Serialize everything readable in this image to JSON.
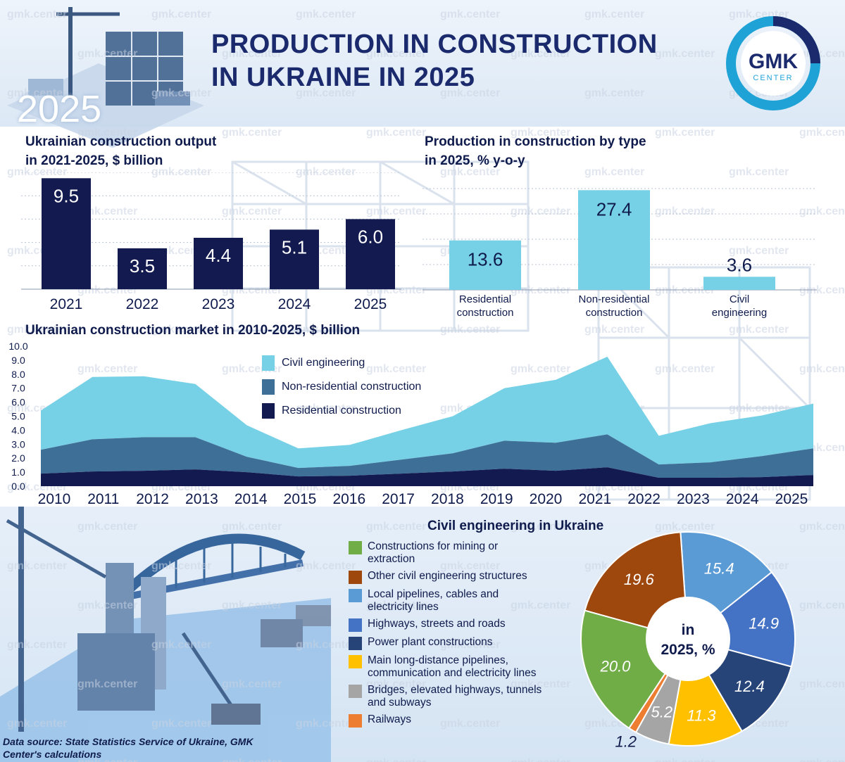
{
  "header": {
    "title_line1": "PRODUCTION IN CONSTRUCTION",
    "title_line2": "IN UKRAINE IN 2025",
    "year_badge": "2025",
    "logo_top": "GMK",
    "logo_bottom": "CENTER",
    "watermark": "gmk.center"
  },
  "colors": {
    "navy": "#121a4f",
    "mid_blue": "#3e6f97",
    "light_blue": "#77d1e6"
  },
  "chart_data": [
    {
      "id": "output",
      "type": "bar",
      "title_line1": "Ukrainian construction output",
      "title_line2": "in 2021-2025, $ billion",
      "categories": [
        "2021",
        "2022",
        "2023",
        "2024",
        "2025"
      ],
      "values": [
        9.5,
        3.5,
        4.4,
        5.1,
        6.0
      ],
      "value_labels": [
        "9.5",
        "3.5",
        "4.4",
        "5.1",
        "6.0"
      ],
      "ylim": [
        0,
        10
      ],
      "grid": true,
      "color": "#121a4f"
    },
    {
      "id": "by_type",
      "type": "bar",
      "title_line1": "Production in construction by type",
      "title_line2": "in 2025, % y-o-y",
      "categories": [
        [
          "Residential",
          "construction"
        ],
        [
          "Non-residential",
          "construction"
        ],
        [
          "Civil",
          "engineering"
        ]
      ],
      "values": [
        13.6,
        27.4,
        3.6
      ],
      "value_labels": [
        "13.6",
        "27.4",
        "3.6"
      ],
      "ylim": [
        0,
        29
      ],
      "grid": true,
      "color": "#77d1e6"
    },
    {
      "id": "market",
      "type": "area",
      "title": "Ukrainian construction market in 2010-2025, $ billion",
      "x": [
        2010,
        2011,
        2012,
        2013,
        2014,
        2015,
        2016,
        2017,
        2018,
        2019,
        2020,
        2021,
        2022,
        2023,
        2024,
        2025
      ],
      "x_labels": [
        "2010",
        "2011",
        "2012",
        "2013",
        "2014",
        "2015",
        "2016",
        "2017",
        "2018",
        "2019",
        "2020",
        "2021",
        "2022",
        "2023",
        "2024",
        "2025"
      ],
      "y_ticks": [
        "0.0",
        "1.0",
        "2.0",
        "3.0",
        "4.0",
        "5.0",
        "6.0",
        "7.0",
        "8.0",
        "9.0",
        "10.0"
      ],
      "ylim": [
        0,
        10
      ],
      "stacked": true,
      "legend_position": "top-center",
      "series": [
        {
          "name": "Residential construction",
          "color": "#121a4f",
          "values": [
            0.9,
            1.05,
            1.1,
            1.2,
            1.0,
            0.7,
            0.75,
            0.9,
            1.05,
            1.25,
            1.1,
            1.35,
            0.6,
            0.6,
            0.65,
            0.8
          ]
        },
        {
          "name": "Non-residential construction",
          "color": "#3e6f97",
          "values": [
            1.7,
            2.3,
            2.4,
            2.3,
            1.1,
            0.6,
            0.7,
            1.0,
            1.3,
            2.0,
            2.0,
            2.35,
            0.95,
            1.1,
            1.5,
            1.9
          ]
        },
        {
          "name": "Civil engineering",
          "color": "#77d1e6",
          "values": [
            2.8,
            4.45,
            4.35,
            3.8,
            2.25,
            1.4,
            1.5,
            2.1,
            2.65,
            3.75,
            4.5,
            5.55,
            2.05,
            2.8,
            2.9,
            3.2
          ]
        }
      ]
    },
    {
      "id": "civil",
      "type": "pie",
      "title": "Civil engineering in Ukraine",
      "center_label_line1": "in",
      "center_label_line2": "2025, %",
      "legend_position": "left",
      "slices": [
        {
          "name": "Local pipelines, cables and electricity lines",
          "legend_lines": [
            "Local pipelines, cables and",
            "electricity lines"
          ],
          "value": 15.4,
          "label": "15.4",
          "color": "#5b9bd5"
        },
        {
          "name": "Highways, streets and roads",
          "legend_lines": [
            "Highways, streets and roads"
          ],
          "value": 14.9,
          "label": "14.9",
          "color": "#4472c4"
        },
        {
          "name": "Power plant constructions",
          "legend_lines": [
            "Power plant constructions"
          ],
          "value": 12.4,
          "label": "12.4",
          "color": "#264478"
        },
        {
          "name": "Main long-distance pipelines, communication and electricity lines",
          "legend_lines": [
            "Main long-distance pipelines,",
            "communication and electricity lines"
          ],
          "value": 11.3,
          "label": "11.3",
          "color": "#ffc000"
        },
        {
          "name": "Bridges, elevated highways, tunnels and subways",
          "legend_lines": [
            "Bridges, elevated highways, tunnels",
            "and subways"
          ],
          "value": 5.2,
          "label": "5.2",
          "color": "#a5a5a5"
        },
        {
          "name": "Railways",
          "legend_lines": [
            "Railways"
          ],
          "value": 1.2,
          "label": "1.2",
          "color": "#ed7d31"
        },
        {
          "name": "Constructions for mining or extraction",
          "legend_lines": [
            "Constructions for mining or",
            "extraction"
          ],
          "value": 20.0,
          "label": "20.0",
          "color": "#70ad47"
        },
        {
          "name": "Other civil engineering structures",
          "legend_lines": [
            "Other civil engineering structures"
          ],
          "value": 19.6,
          "label": "19.6",
          "color": "#9e480e"
        }
      ],
      "legend_order": [
        6,
        7,
        0,
        1,
        2,
        3,
        4,
        5
      ]
    }
  ],
  "source": {
    "line1": "Data source: State Statistics Service of Ukraine, GMK",
    "line2": "Center's calculations"
  }
}
